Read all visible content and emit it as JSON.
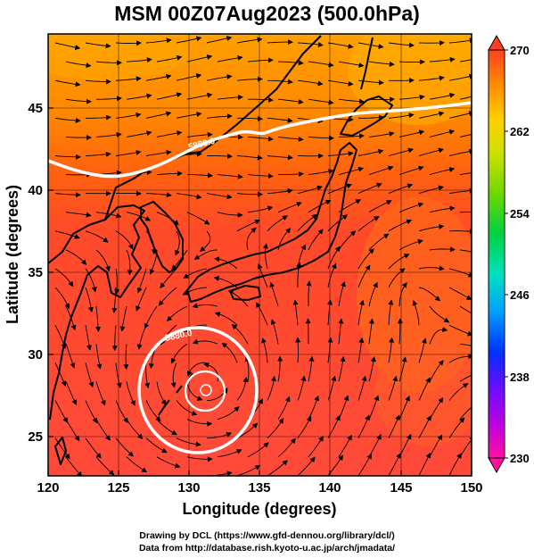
{
  "title": "MSM 00Z07Aug2023 (500.0hPa)",
  "map": {
    "x_axis_label": "Longitude (degrees)",
    "y_axis_label": "Latitude (degrees)",
    "lon_range": [
      120,
      150
    ],
    "lat_range": [
      22.4,
      47.6
    ],
    "lon_ticks": [
      "120",
      "125",
      "130",
      "135",
      "140",
      "145",
      "150"
    ],
    "lat_ticks": [
      "25",
      "30",
      "35",
      "40",
      "45"
    ],
    "contours": [
      {
        "label": "5880.0",
        "color": "#ffffff"
      },
      {
        "label": "5880.0",
        "color": "#ffffff"
      }
    ],
    "typhoon_center": {
      "lon": 131.2,
      "lat": 27.8
    }
  },
  "colorbar": {
    "ticks": [
      "270",
      "262",
      "254",
      "246",
      "238",
      "230"
    ],
    "min": 230,
    "max": 270,
    "colors": [
      "#ff00a0",
      "#c000e0",
      "#6000ff",
      "#0040ff",
      "#00a0ff",
      "#00e0c0",
      "#00d040",
      "#60d000",
      "#c8e000",
      "#ffd000",
      "#ff9000",
      "#ff5020"
    ]
  },
  "credits": {
    "line1": "Drawing by DCL (https://www.gfd-dennou.org/library/dcl/)",
    "line2": "Data from http://database.rish.kyoto-u.ac.jp/arch/jmadata/"
  }
}
